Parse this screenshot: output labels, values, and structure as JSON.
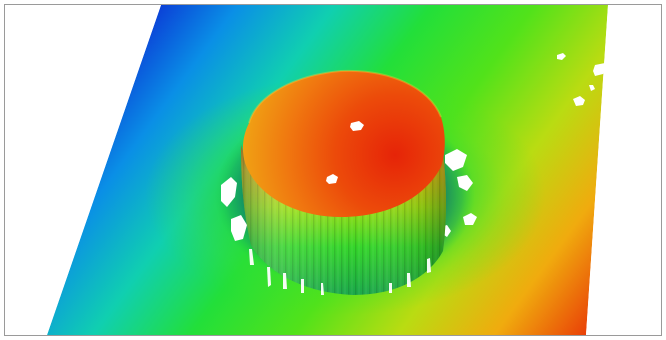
{
  "view": {
    "kind": "3d-surface-height-map",
    "background": "#ffffff",
    "frame_border": "#9a9a9a",
    "colormap": [
      "#0b3bd6",
      "#0aa6e0",
      "#10d3a0",
      "#2ee31c",
      "#9ade12",
      "#e6d414",
      "#f08a0c",
      "#e81a04"
    ],
    "features": [
      "tilted-plane",
      "raised-cylindrical-pillar",
      "pillar-top-dome",
      "pillar-side-walls",
      "data-holes"
    ]
  }
}
